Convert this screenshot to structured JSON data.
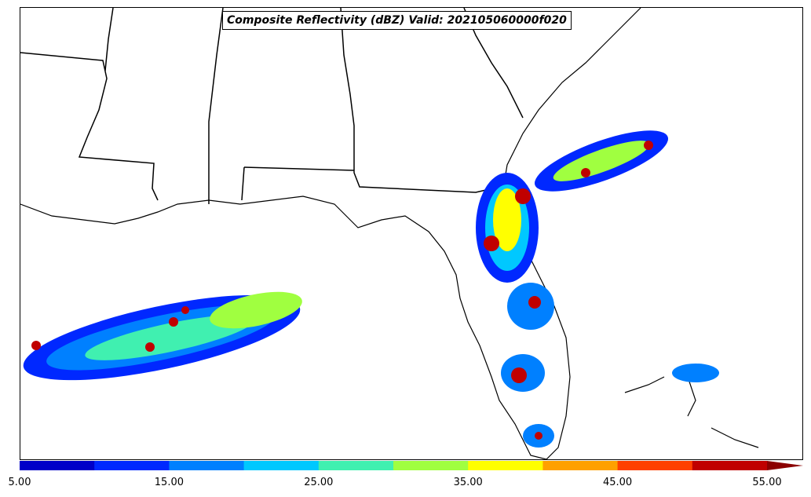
{
  "title": "Composite Reflectivity (dBZ) Valid: 202105060000f020",
  "colorbar": {
    "levels": [
      5,
      10,
      15,
      20,
      25,
      30,
      35,
      40,
      45,
      50,
      55
    ],
    "colors": [
      "#0000c8",
      "#0028ff",
      "#0080ff",
      "#00c8ff",
      "#40f0b0",
      "#a0ff40",
      "#ffff00",
      "#ffa000",
      "#ff4000",
      "#c00000",
      "#8b0000"
    ],
    "tick_labels": [
      "5.00",
      "15.00",
      "25.00",
      "35.00",
      "45.00",
      "55.00"
    ],
    "extend": "max"
  }
}
